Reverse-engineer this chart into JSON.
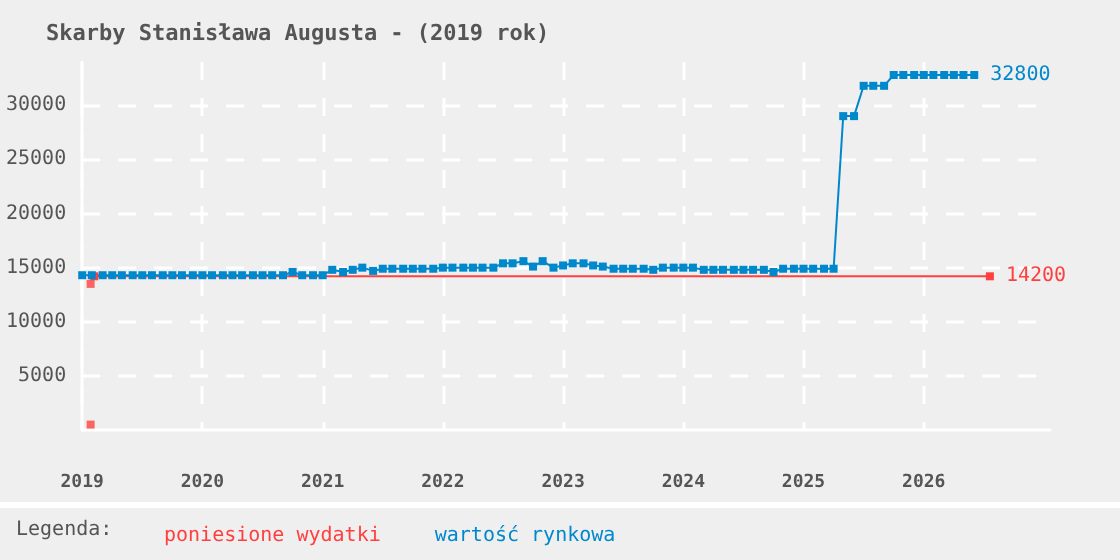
{
  "chart_data": {
    "type": "line",
    "title": "Skarby Stanisława Augusta - (2019 rok)",
    "legend_title": "Legenda:",
    "legend": "bottom left",
    "grid": true,
    "marker": "square",
    "xlim": [
      2019,
      2027.05
    ],
    "xticks": [
      2019,
      2020,
      2021,
      2022,
      2023,
      2024,
      2025,
      2026
    ],
    "ylim": [
      0,
      34000
    ],
    "yticks": [
      5000,
      10000,
      15000,
      20000,
      25000,
      30000
    ],
    "series": [
      {
        "type": "scatter",
        "color": "#ff4040",
        "x": [
          2019.07,
          2019.07
        ],
        "values": [
          500,
          13500
        ]
      },
      {
        "name": "poniesione wydatki",
        "color": "#ff4040",
        "x": [
          2019.1,
          2026.55
        ],
        "values": [
          14200,
          14200
        ],
        "value_labels": [
          null,
          "14200"
        ]
      },
      {
        "name": "wartość rynkowa",
        "color": "#0088cc",
        "x": [
          2019.0,
          2019.08,
          2019.17,
          2019.25,
          2019.33,
          2019.42,
          2019.5,
          2019.58,
          2019.67,
          2019.75,
          2019.83,
          2019.92,
          2020.0,
          2020.08,
          2020.17,
          2020.25,
          2020.33,
          2020.42,
          2020.5,
          2020.58,
          2020.67,
          2020.75,
          2020.83,
          2020.92,
          2021.0,
          2021.08,
          2021.17,
          2021.25,
          2021.33,
          2021.42,
          2021.5,
          2021.58,
          2021.67,
          2021.75,
          2021.83,
          2021.92,
          2022.0,
          2022.08,
          2022.17,
          2022.25,
          2022.33,
          2022.42,
          2022.5,
          2022.58,
          2022.67,
          2022.75,
          2022.83,
          2022.92,
          2023.0,
          2023.08,
          2023.17,
          2023.25,
          2023.33,
          2023.42,
          2023.5,
          2023.58,
          2023.67,
          2023.75,
          2023.83,
          2023.92,
          2024.0,
          2024.08,
          2024.17,
          2024.25,
          2024.33,
          2024.42,
          2024.5,
          2024.58,
          2024.67,
          2024.75,
          2024.83,
          2024.92,
          2025.0,
          2025.08,
          2025.17,
          2025.25,
          2025.33,
          2025.42,
          2025.5,
          2025.58,
          2025.67,
          2025.75,
          2025.83,
          2025.92,
          2026.0,
          2026.08,
          2026.17,
          2026.25,
          2026.33,
          2026.42
        ],
        "values": [
          14300,
          14300,
          14300,
          14300,
          14300,
          14300,
          14300,
          14300,
          14300,
          14300,
          14300,
          14300,
          14300,
          14300,
          14300,
          14300,
          14300,
          14300,
          14300,
          14300,
          14300,
          14600,
          14300,
          14300,
          14300,
          14800,
          14600,
          14800,
          15000,
          14700,
          14900,
          14900,
          14900,
          14900,
          14900,
          14900,
          15000,
          15000,
          15000,
          15000,
          15000,
          15000,
          15400,
          15400,
          15600,
          15100,
          15600,
          15000,
          15200,
          15400,
          15400,
          15200,
          15100,
          14900,
          14900,
          14900,
          14900,
          14800,
          15000,
          15000,
          15000,
          15000,
          14800,
          14800,
          14800,
          14800,
          14800,
          14800,
          14800,
          14600,
          14900,
          14900,
          14900,
          14900,
          14900,
          14900,
          29000,
          29000,
          31800,
          31800,
          31800,
          32800,
          32800,
          32800,
          32800,
          32800,
          32800,
          32800,
          32800,
          32800
        ],
        "value_labels": [
          null,
          null,
          null,
          null,
          null,
          null,
          null,
          null,
          null,
          null,
          null,
          null,
          null,
          null,
          null,
          null,
          null,
          null,
          null,
          null,
          null,
          null,
          null,
          null,
          null,
          null,
          null,
          null,
          null,
          null,
          null,
          null,
          null,
          null,
          null,
          null,
          null,
          null,
          null,
          null,
          null,
          null,
          null,
          null,
          null,
          null,
          null,
          null,
          null,
          null,
          null,
          null,
          null,
          null,
          null,
          null,
          null,
          null,
          null,
          null,
          null,
          null,
          null,
          null,
          null,
          null,
          null,
          null,
          null,
          null,
          null,
          null,
          null,
          null,
          null,
          null,
          null,
          null,
          null,
          null,
          null,
          null,
          null,
          null,
          null,
          null,
          null,
          null,
          null,
          "32800"
        ]
      }
    ]
  }
}
